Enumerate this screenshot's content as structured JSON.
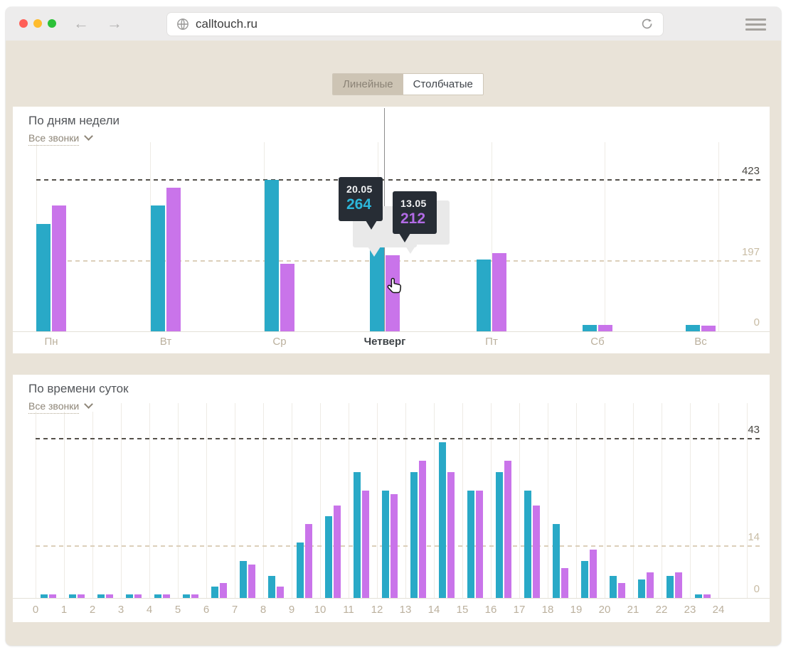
{
  "browser": {
    "url": "calltouch.ru",
    "back_arrow": "←",
    "forward_arrow": "→"
  },
  "view_tabs": [
    {
      "label": "Линейные",
      "active": false
    },
    {
      "label": "Столбчатые",
      "active": true
    }
  ],
  "tooltips": [
    {
      "date": "20.05",
      "value": "264"
    },
    {
      "date": "13.05",
      "value": "212"
    }
  ],
  "colors": {
    "series_current_cyan": "#29a9c7",
    "series_previous_purple": "#c974ea",
    "tooltip_bg": "#272d35",
    "tooltip_value_current": "#2cb6da",
    "tooltip_value_previous": "#b26be6",
    "page_bg": "#e9e3d8",
    "card_bg": "#ffffff",
    "traffic_red": "#ff5f57",
    "traffic_yellow": "#febc2e",
    "traffic_green": "#2cc138"
  },
  "chart_data": [
    {
      "type": "bar",
      "title": "По дням недели",
      "filter_label": "Все звонки",
      "categories": [
        "Пн",
        "Вт",
        "Ср",
        "Четверг",
        "Пт",
        "Сб",
        "Вс"
      ],
      "highlighted_category": "Четверг",
      "series": [
        {
          "name": "20.05",
          "color": "#29a9c7",
          "values": [
            300,
            351,
            423,
            264,
            201,
            18,
            18
          ]
        },
        {
          "name": "13.05",
          "color": "#c974ea",
          "values": [
            351,
            401,
            188,
            212,
            219,
            18,
            16
          ]
        }
      ],
      "ylim": [
        0,
        423
      ],
      "yticks": [
        {
          "label": "423",
          "value": 423,
          "emphasis": true
        },
        {
          "label": "197",
          "value": 197,
          "emphasis": false
        },
        {
          "label": "0",
          "value": 0,
          "emphasis": false
        }
      ],
      "grid": "horizontal dashed lines, faint vertical lines",
      "legend": "none"
    },
    {
      "type": "bar",
      "title": "По времени суток",
      "filter_label": "Все звонки",
      "categories": [
        "0",
        "1",
        "2",
        "3",
        "4",
        "5",
        "6",
        "7",
        "8",
        "9",
        "10",
        "11",
        "12",
        "13",
        "14",
        "15",
        "16",
        "17",
        "18",
        "19",
        "20",
        "21",
        "22",
        "23"
      ],
      "x_axis_tick_labels": [
        "0",
        "1",
        "2",
        "3",
        "4",
        "5",
        "6",
        "7",
        "8",
        "9",
        "10",
        "11",
        "12",
        "13",
        "14",
        "15",
        "16",
        "17",
        "18",
        "19",
        "20",
        "21",
        "22",
        "23",
        "24"
      ],
      "series": [
        {
          "name": "20.05",
          "color": "#29a9c7",
          "values": [
            1,
            1,
            1,
            1,
            1,
            1,
            3,
            10,
            6,
            15,
            22,
            34,
            29,
            34,
            42,
            29,
            34,
            29,
            20,
            10,
            6,
            5,
            6,
            1
          ]
        },
        {
          "name": "13.05",
          "color": "#c974ea",
          "values": [
            1,
            1,
            1,
            1,
            1,
            1,
            4,
            9,
            3,
            20,
            25,
            29,
            28,
            37,
            34,
            29,
            37,
            25,
            8,
            13,
            4,
            7,
            7,
            1
          ]
        }
      ],
      "ylim": [
        0,
        43
      ],
      "yticks": [
        {
          "label": "43",
          "value": 43,
          "emphasis": true
        },
        {
          "label": "14",
          "value": 14,
          "emphasis": false
        },
        {
          "label": "0",
          "value": 0,
          "emphasis": false
        }
      ],
      "grid": "horizontal dashed lines, vertical line per hour",
      "legend": "none"
    }
  ]
}
